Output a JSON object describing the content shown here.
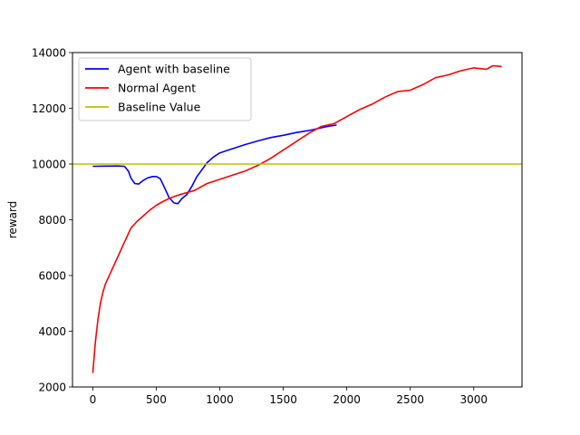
{
  "chart_data": {
    "type": "line",
    "title": "",
    "xlabel": "",
    "ylabel": "reward",
    "xlim": [
      -160,
      3380
    ],
    "ylim": [
      2000,
      14000
    ],
    "xticks": [
      0,
      500,
      1000,
      1500,
      2000,
      2500,
      3000
    ],
    "yticks": [
      2000,
      4000,
      6000,
      8000,
      10000,
      12000,
      14000
    ],
    "xtick_labels": [
      "0",
      "500",
      "1000",
      "1500",
      "2000",
      "2500",
      "3000"
    ],
    "ytick_labels": [
      "2000",
      "4000",
      "6000",
      "8000",
      "10000",
      "12000",
      "14000"
    ],
    "grid": false,
    "legend_position": "top-left",
    "series": [
      {
        "name": "Agent with baseline",
        "color": "#0000ff",
        "x": [
          0,
          100,
          200,
          250,
          280,
          300,
          330,
          360,
          400,
          430,
          470,
          500,
          530,
          560,
          600,
          640,
          670,
          700,
          740,
          780,
          820,
          860,
          900,
          950,
          1000,
          1100,
          1200,
          1300,
          1400,
          1500,
          1600,
          1700,
          1800,
          1850,
          1920
        ],
        "y": [
          9920,
          9925,
          9930,
          9920,
          9750,
          9500,
          9300,
          9280,
          9420,
          9500,
          9550,
          9550,
          9480,
          9200,
          8800,
          8600,
          8580,
          8750,
          8900,
          9200,
          9550,
          9800,
          10050,
          10250,
          10400,
          10550,
          10700,
          10830,
          10950,
          11030,
          11130,
          11200,
          11300,
          11350,
          11400
        ]
      },
      {
        "name": "Normal Agent",
        "color": "#ff0000",
        "x": [
          0,
          20,
          40,
          60,
          80,
          100,
          150,
          200,
          250,
          300,
          350,
          400,
          450,
          500,
          550,
          600,
          650,
          700,
          800,
          900,
          1000,
          1100,
          1200,
          1300,
          1400,
          1500,
          1600,
          1700,
          1800,
          1900,
          2000,
          2100,
          2200,
          2300,
          2400,
          2500,
          2600,
          2700,
          2800,
          2900,
          3000,
          3100,
          3150,
          3220
        ],
        "y": [
          2500,
          3600,
          4400,
          5000,
          5400,
          5700,
          6200,
          6700,
          7200,
          7700,
          7950,
          8150,
          8350,
          8520,
          8650,
          8760,
          8850,
          8920,
          9050,
          9300,
          9450,
          9600,
          9750,
          9950,
          10200,
          10500,
          10800,
          11100,
          11350,
          11450,
          11700,
          11950,
          12150,
          12400,
          12600,
          12650,
          12850,
          13100,
          13200,
          13350,
          13450,
          13400,
          13530,
          13500
        ]
      },
      {
        "name": "Baseline Value",
        "color": "#bfbf00",
        "type": "hline",
        "y": 10000
      }
    ]
  }
}
